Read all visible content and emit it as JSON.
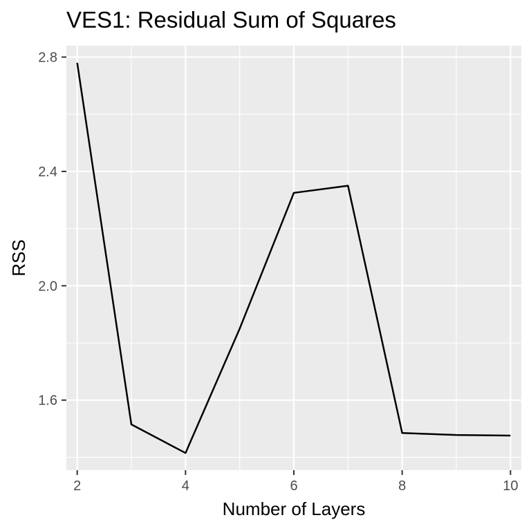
{
  "chart_data": {
    "type": "line",
    "title": "VES1: Residual Sum of Squares",
    "xlabel": "Number of Layers",
    "ylabel": "RSS",
    "x": [
      2,
      3,
      4,
      5,
      6,
      7,
      8,
      9,
      10
    ],
    "series": [
      {
        "values": [
          2.78,
          1.515,
          1.415,
          1.85,
          2.325,
          2.35,
          1.485,
          1.478,
          1.476
        ]
      }
    ],
    "xlim": [
      1.8,
      10.2
    ],
    "ylim": [
      1.355,
      2.84
    ],
    "x_ticks": [
      2,
      4,
      6,
      8,
      10
    ],
    "x_tick_labels": [
      "2",
      "4",
      "6",
      "8",
      "10"
    ],
    "y_ticks": [
      1.6,
      2.0,
      2.4,
      2.8
    ],
    "y_tick_labels": [
      "1.6",
      "2.0",
      "2.4",
      "2.8"
    ],
    "x_minor_ticks": [
      3,
      5,
      7,
      9
    ],
    "y_minor_ticks": [
      1.4,
      1.8,
      2.2,
      2.6
    ],
    "grid": true,
    "legend": "none",
    "colors": {
      "panel_background": "#ebebeb",
      "grid_major": "#ffffff",
      "grid_minor": "#ffffff",
      "line": "#000000",
      "tick_text": "#4d4d4d",
      "tick_mark": "#333333"
    }
  }
}
